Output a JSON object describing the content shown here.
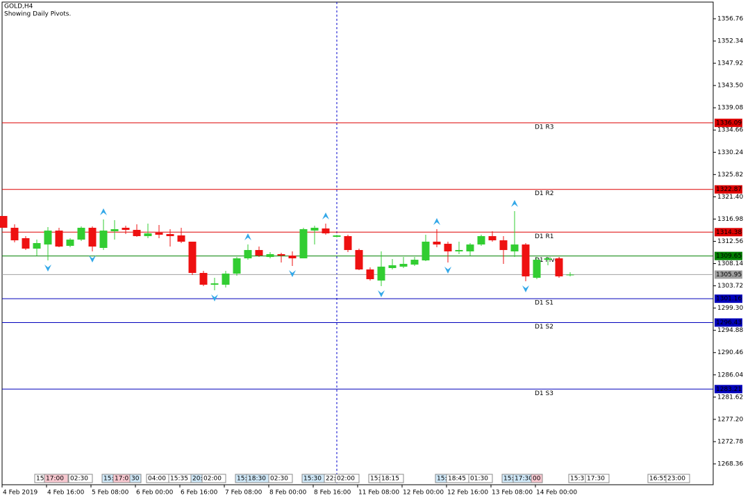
{
  "chart_data": {
    "type": "candlestick",
    "title": "GOLD,H4",
    "subtitle": "Showing Daily Pivots.",
    "up_color": "#32cd32",
    "down_color": "#ee1111",
    "categories": [
      "4 Feb 2019",
      null,
      null,
      null,
      "4 Feb 16:00",
      null,
      null,
      null,
      "5 Feb 08:00",
      null,
      null,
      null,
      "6 Feb 00:00",
      null,
      null,
      null,
      "6 Feb 16:00",
      null,
      null,
      null,
      "7 Feb 08:00",
      null,
      null,
      null,
      "8 Feb 00:00",
      null,
      null,
      null,
      "8 Feb 16:00",
      null,
      null,
      null,
      "11 Feb 08:00",
      null,
      null,
      null,
      "12 Feb 00:00",
      null,
      null,
      null,
      "12 Feb 16:00",
      null,
      null,
      null,
      "13 Feb 08:00",
      null,
      null,
      null,
      "14 Feb 00:00",
      null,
      null,
      null
    ],
    "open": [
      1317.59,
      1315.25,
      1313.18,
      1311.11,
      1311.93,
      1314.69,
      1311.66,
      1312.9,
      1315.25,
      1311.25,
      1314.56,
      1315.25,
      1314.83,
      1313.59,
      1314.28,
      1314.0,
      1313.73,
      1312.49,
      1306.28,
      1303.94,
      1303.94,
      1306.15,
      1309.18,
      1310.83,
      1309.45,
      1310.01,
      1309.73,
      1309.18,
      1314.69,
      1315.11,
      1313.45,
      1313.59,
      1310.83,
      1306.97,
      1304.77,
      1307.25,
      1307.53,
      1307.94,
      1308.77,
      1312.49,
      1312.07,
      1310.56,
      1310.56,
      1311.93,
      1313.59,
      1312.76,
      1310.56,
      1311.93,
      1305.32,
      1308.9,
      1309.18,
      1305.87
    ],
    "high": [
      1317.59,
      1315.94,
      1313.59,
      1312.9,
      1315.38,
      1315.25,
      1313.18,
      1315.52,
      1315.52,
      1316.9,
      1316.76,
      1315.66,
      1315.94,
      1316.07,
      1315.8,
      1314.97,
      1315.25,
      1312.49,
      1306.7,
      1305.32,
      1306.7,
      1309.45,
      1311.93,
      1311.52,
      1310.42,
      1310.28,
      1310.56,
      1315.25,
      1315.66,
      1316.07,
      1313.87,
      1313.87,
      1311.11,
      1307.39,
      1310.56,
      1309.04,
      1309.45,
      1309.45,
      1313.87,
      1314.97,
      1312.49,
      1312.49,
      1312.21,
      1313.87,
      1314.56,
      1313.59,
      1318.56,
      1312.21,
      1309.45,
      1309.45,
      1309.45,
      1306.42
    ],
    "low": [
      1315.25,
      1312.35,
      1310.83,
      1309.73,
      1308.77,
      1311.38,
      1311.38,
      1312.62,
      1310.56,
      1310.83,
      1312.9,
      1314.0,
      1313.45,
      1313.18,
      1313.18,
      1311.52,
      1312.21,
      1305.87,
      1303.66,
      1302.84,
      1303.39,
      1305.73,
      1308.9,
      1309.45,
      1309.18,
      1308.35,
      1307.66,
      1309.18,
      1311.93,
      1313.87,
      1313.31,
      1310.42,
      1306.84,
      1304.77,
      1303.66,
      1306.97,
      1307.25,
      1307.66,
      1308.63,
      1311.38,
      1308.35,
      1310.01,
      1309.73,
      1311.66,
      1312.49,
      1308.08,
      1309.45,
      1304.63,
      1305.04,
      1307.8,
      1305.32,
      1305.6
    ],
    "close": [
      1315.25,
      1312.76,
      1311.11,
      1312.21,
      1314.69,
      1311.52,
      1312.9,
      1315.25,
      1311.52,
      1314.69,
      1314.97,
      1314.83,
      1313.59,
      1314.14,
      1313.87,
      1313.59,
      1312.49,
      1306.28,
      1303.94,
      1304.21,
      1306.15,
      1309.18,
      1310.83,
      1309.73,
      1310.01,
      1309.73,
      1309.18,
      1314.97,
      1315.25,
      1314.14,
      1313.73,
      1310.83,
      1306.97,
      1305.04,
      1307.53,
      1307.8,
      1308.08,
      1308.9,
      1312.49,
      1311.93,
      1310.56,
      1310.83,
      1311.93,
      1313.59,
      1312.76,
      1310.83,
      1311.93,
      1305.6,
      1308.9,
      1309.18,
      1305.6,
      1305.95
    ],
    "fractals_up": [
      9,
      22,
      29,
      39,
      46
    ],
    "fractals_down": [
      4,
      8,
      19,
      26,
      34,
      40,
      47
    ],
    "fractal_color": "#33a8e8",
    "separator_index": 30,
    "pivots": [
      {
        "name": "D1 R3",
        "value": 1336.09,
        "color": "#dd0000"
      },
      {
        "name": "D1 R2",
        "value": 1322.87,
        "color": "#dd0000"
      },
      {
        "name": "D1 R1",
        "value": 1314.38,
        "color": "#dd0000"
      },
      {
        "name": "D1 Pivot",
        "value": 1309.65,
        "color": "#008000"
      },
      {
        "name": "D1 S1",
        "value": 1301.16,
        "color": "#0000bb"
      },
      {
        "name": "D1 S2",
        "value": 1296.43,
        "color": "#0000bb"
      },
      {
        "name": "D1 S3",
        "value": 1283.21,
        "color": "#0000bb"
      }
    ],
    "current_price": 1305.95,
    "ylim": [
      1264.22,
      1360.07
    ],
    "yticks": [
      1356.76,
      1352.34,
      1347.92,
      {
        "value": 1343.5,
        "label": "1343.50"
      },
      1339.08,
      1334.66,
      1330.24,
      1325.82,
      {
        "value": 1321.4,
        "label": "1321.40"
      },
      1316.98,
      1312.56,
      1308.14,
      1303.72,
      {
        "value": 1299.3,
        "label": "1299.30"
      },
      1294.88,
      1290.46,
      1286.04,
      1281.62,
      {
        "value": 1277.2,
        "label": "1277.20"
      },
      1272.78,
      1268.36
    ],
    "time_markers": [
      "15:",
      "17:00",
      "02:30",
      "15:",
      "17:01",
      "30",
      "04:00",
      "15:35",
      "20:",
      "02:00",
      "15:",
      "18:30",
      "02:30",
      "15:30",
      "22:",
      "02:00",
      "15:",
      "18:15",
      "15:",
      "18:45",
      "01:30",
      "15:",
      "17:30",
      "00",
      "15:3",
      "17:30",
      "16:55",
      "23:00"
    ]
  }
}
